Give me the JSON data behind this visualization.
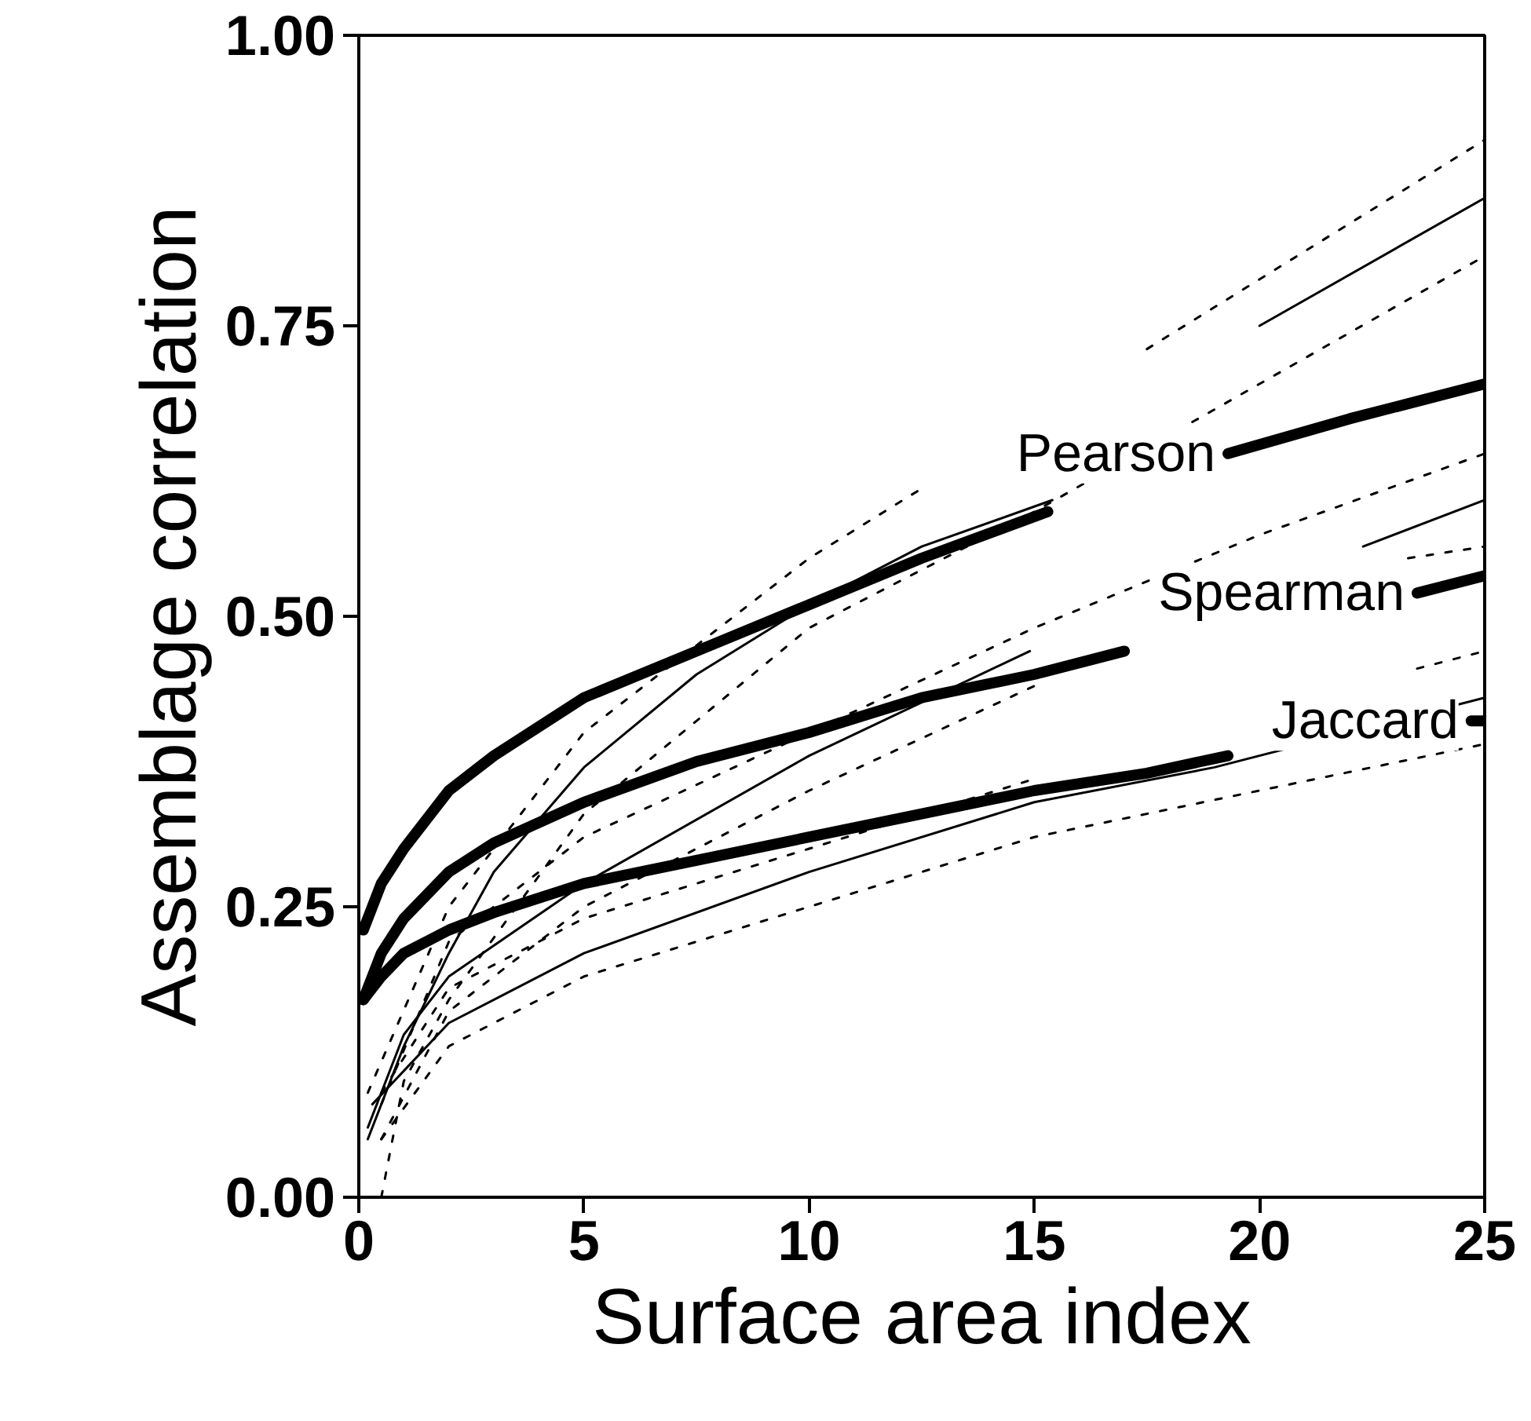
{
  "chart_data": {
    "type": "line",
    "xlabel": "Surface area index",
    "ylabel": "Assemblage correlation",
    "xlim": [
      0,
      25
    ],
    "ylim": [
      0,
      1
    ],
    "xticks": [
      0,
      5,
      10,
      15,
      20,
      25
    ],
    "yticks": [
      {
        "value": 0,
        "label": "0.00"
      },
      {
        "value": 0.25,
        "label": "0.25"
      },
      {
        "value": 0.5,
        "label": "0.50"
      },
      {
        "value": 0.75,
        "label": "0.75"
      },
      {
        "value": 1,
        "label": "1.00"
      }
    ],
    "grid": false,
    "series": [
      {
        "name": "Pearson",
        "color": "#000000",
        "x": [
          0.1,
          0.5,
          1,
          2,
          3,
          5,
          7.5,
          10,
          12.5,
          15.3,
          17.3,
          19.3,
          22,
          25
        ],
        "values": [
          0.23,
          0.27,
          0.3,
          0.35,
          0.38,
          0.43,
          0.47,
          0.51,
          0.55,
          0.59,
          null,
          0.64,
          0.67,
          0.7
        ]
      },
      {
        "name": "Spearman",
        "color": "#000000",
        "x": [
          0.1,
          0.5,
          1,
          2,
          3,
          5,
          7.5,
          10,
          12.5,
          15,
          17,
          20,
          23.5,
          25
        ],
        "values": [
          0.17,
          0.21,
          0.24,
          0.28,
          0.305,
          0.34,
          0.375,
          0.4,
          0.43,
          0.45,
          0.47,
          null,
          0.52,
          0.535
        ]
      },
      {
        "name": "Jaccard",
        "color": "#000000",
        "x": [
          0.1,
          0.5,
          1,
          2,
          3,
          5,
          7.5,
          10,
          12.5,
          15,
          17.5,
          19.3,
          22,
          24.7,
          25
        ],
        "values": [
          0.17,
          0.19,
          0.21,
          0.23,
          0.245,
          0.27,
          0.29,
          0.31,
          0.33,
          0.35,
          0.365,
          0.38,
          null,
          0.41,
          0.41
        ]
      },
      {
        "color": "#000000",
        "line_style": "solid",
        "x": [
          0.2,
          1,
          2,
          3,
          5,
          7.5,
          10,
          12.5,
          15.4,
          17.5,
          20,
          25
        ],
        "values": [
          0.05,
          0.13,
          0.21,
          0.28,
          0.37,
          0.45,
          0.51,
          0.56,
          0.6,
          null,
          0.75,
          0.86
        ]
      },
      {
        "color": "#000000",
        "line_style": "dotted",
        "x": [
          0.2,
          2,
          5,
          10,
          12.5,
          15,
          17.5,
          20,
          25
        ],
        "values": [
          0.09,
          0.25,
          0.4,
          0.55,
          0.61,
          null,
          0.73,
          0.79,
          0.91
        ]
      },
      {
        "color": "#000000",
        "line_style": "dotted",
        "x": [
          0.5,
          1,
          2,
          5,
          10,
          15,
          20,
          25
        ],
        "values": [
          0.0,
          0.1,
          0.17,
          0.33,
          0.49,
          0.59,
          0.7,
          0.81
        ]
      },
      {
        "color": "#000000",
        "line_style": "solid",
        "x": [
          0.2,
          1,
          2,
          5,
          10,
          14.9,
          20,
          22.3,
          25
        ],
        "values": [
          0.06,
          0.14,
          0.19,
          0.27,
          0.38,
          0.47,
          null,
          0.56,
          0.6
        ]
      },
      {
        "color": "#000000",
        "line_style": "dotted",
        "x": [
          0.5,
          2,
          5,
          10,
          15,
          20,
          25
        ],
        "values": [
          0.08,
          0.22,
          0.31,
          0.4,
          0.49,
          0.57,
          0.64
        ]
      },
      {
        "color": "#000000",
        "line_style": "dotted",
        "x": [
          0.5,
          2,
          5,
          10,
          15,
          20,
          23.3,
          25
        ],
        "values": [
          0.05,
          0.16,
          0.25,
          0.35,
          0.44,
          null,
          0.55,
          0.56
        ]
      },
      {
        "color": "#000000",
        "line_style": "solid",
        "x": [
          0.3,
          2,
          5,
          10,
          15,
          19,
          25
        ],
        "values": [
          0.08,
          0.15,
          0.21,
          0.28,
          0.34,
          0.37,
          0.43
        ]
      },
      {
        "color": "#000000",
        "line_style": "dotted",
        "x": [
          0.5,
          2,
          5,
          10,
          15,
          20,
          23.5,
          25
        ],
        "values": [
          0.09,
          0.18,
          0.24,
          0.3,
          0.36,
          null,
          0.455,
          0.47
        ]
      },
      {
        "color": "#000000",
        "line_style": "dotted",
        "x": [
          0.5,
          2,
          5,
          10,
          15,
          20,
          25
        ],
        "values": [
          0.05,
          0.13,
          0.19,
          0.25,
          0.31,
          0.35,
          0.39
        ]
      }
    ]
  }
}
